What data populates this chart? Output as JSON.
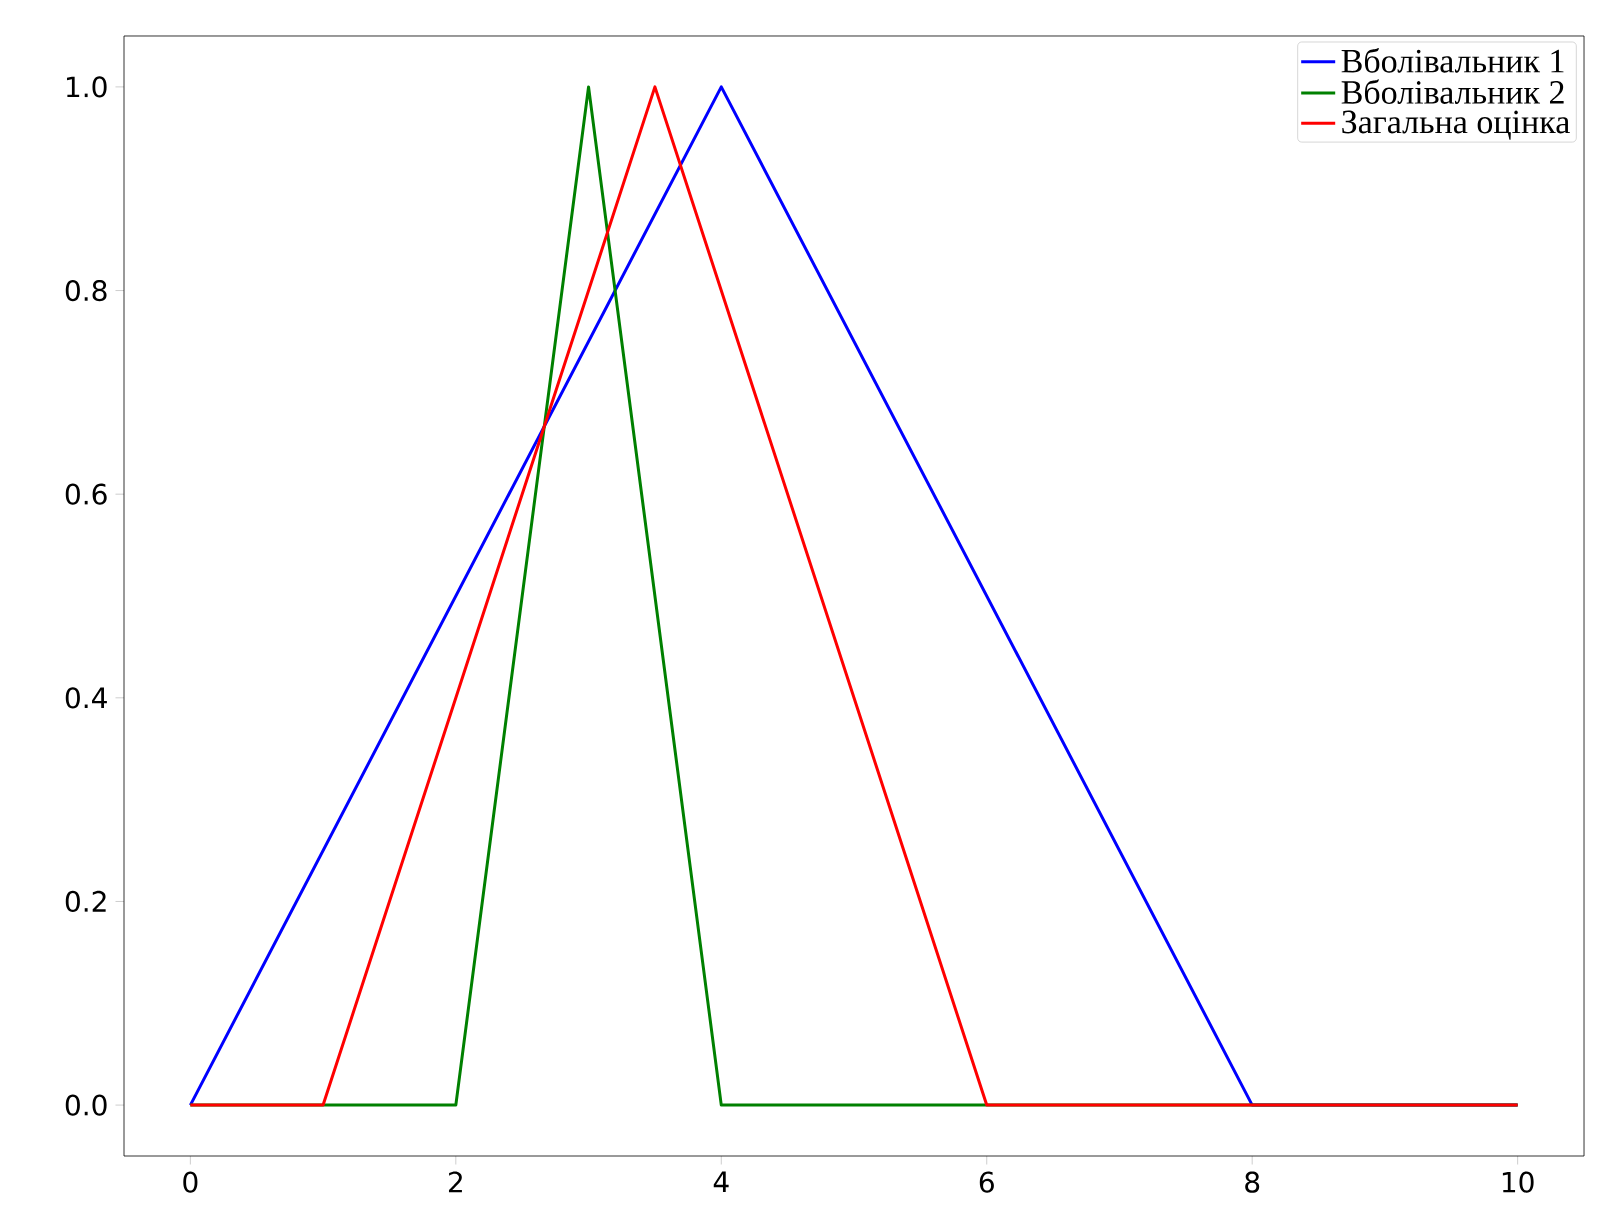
{
  "chart_data": {
    "type": "line",
    "xlim": [
      -0.5,
      10.5
    ],
    "ylim": [
      -0.05,
      1.05
    ],
    "xticks": [
      0,
      2,
      4,
      6,
      8,
      10
    ],
    "yticks": [
      {
        "value": 0,
        "label": "0.0"
      },
      {
        "value": 0.2,
        "label": "0.2"
      },
      {
        "value": 0.4,
        "label": "0.4"
      },
      {
        "value": 0.6,
        "label": "0.6"
      },
      {
        "value": 0.8,
        "label": "0.8"
      },
      {
        "value": 1,
        "label": "1.0"
      }
    ],
    "legend": "top right",
    "line_style": "solid",
    "series": [
      {
        "name": "Вболівальник 1",
        "color": "#0000ff",
        "x": [
          0,
          4,
          8,
          10
        ],
        "values": [
          0,
          1,
          0,
          0
        ]
      },
      {
        "name": "Вболівальник 2",
        "color": "#008000",
        "x": [
          0,
          2,
          3,
          4,
          10
        ],
        "values": [
          0,
          0,
          1,
          0,
          0
        ]
      },
      {
        "name": "Загальна оцінка",
        "color": "#ff0000",
        "x": [
          0,
          1,
          3.5,
          6,
          10
        ],
        "values": [
          0,
          0,
          1,
          0,
          0
        ]
      }
    ]
  }
}
